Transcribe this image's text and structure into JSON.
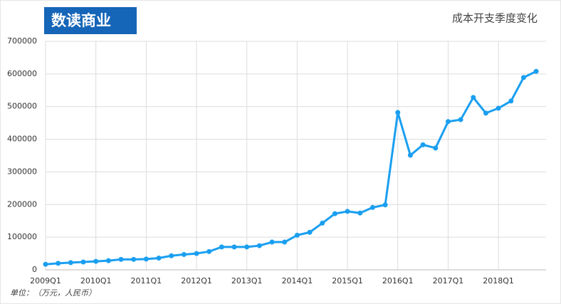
{
  "logo": "数读商业",
  "chart_data": {
    "type": "line",
    "title": "成本开支季度变化",
    "note": "单位：（万元，人民币）",
    "categories": [
      "2009Q1",
      null,
      null,
      null,
      "2010Q1",
      null,
      null,
      null,
      "2011Q1",
      null,
      null,
      null,
      "2012Q1",
      null,
      null,
      null,
      "2013Q1",
      null,
      null,
      null,
      "2014Q1",
      null,
      null,
      null,
      "2015Q1",
      null,
      null,
      null,
      "2016Q1",
      null,
      null,
      null,
      "2017Q1",
      null,
      null,
      null,
      "2018Q1",
      null,
      null,
      null
    ],
    "series": [
      {
        "name": "成本开支",
        "color": "#1a9ff0",
        "values": [
          17000,
          20000,
          22000,
          24000,
          26000,
          28000,
          32000,
          32000,
          33000,
          36000,
          43000,
          47000,
          50000,
          56000,
          70000,
          70000,
          70000,
          74000,
          85000,
          85000,
          106000,
          115000,
          143000,
          172000,
          179000,
          174000,
          191000,
          199000,
          482000,
          351000,
          383000,
          373000,
          454000,
          460000,
          528000,
          480000,
          495000,
          517000,
          589000,
          608000
        ]
      }
    ],
    "ylim": [
      0,
      700000
    ],
    "yticks": [
      0,
      100000,
      200000,
      300000,
      400000,
      500000,
      600000,
      700000
    ],
    "grid": true
  }
}
